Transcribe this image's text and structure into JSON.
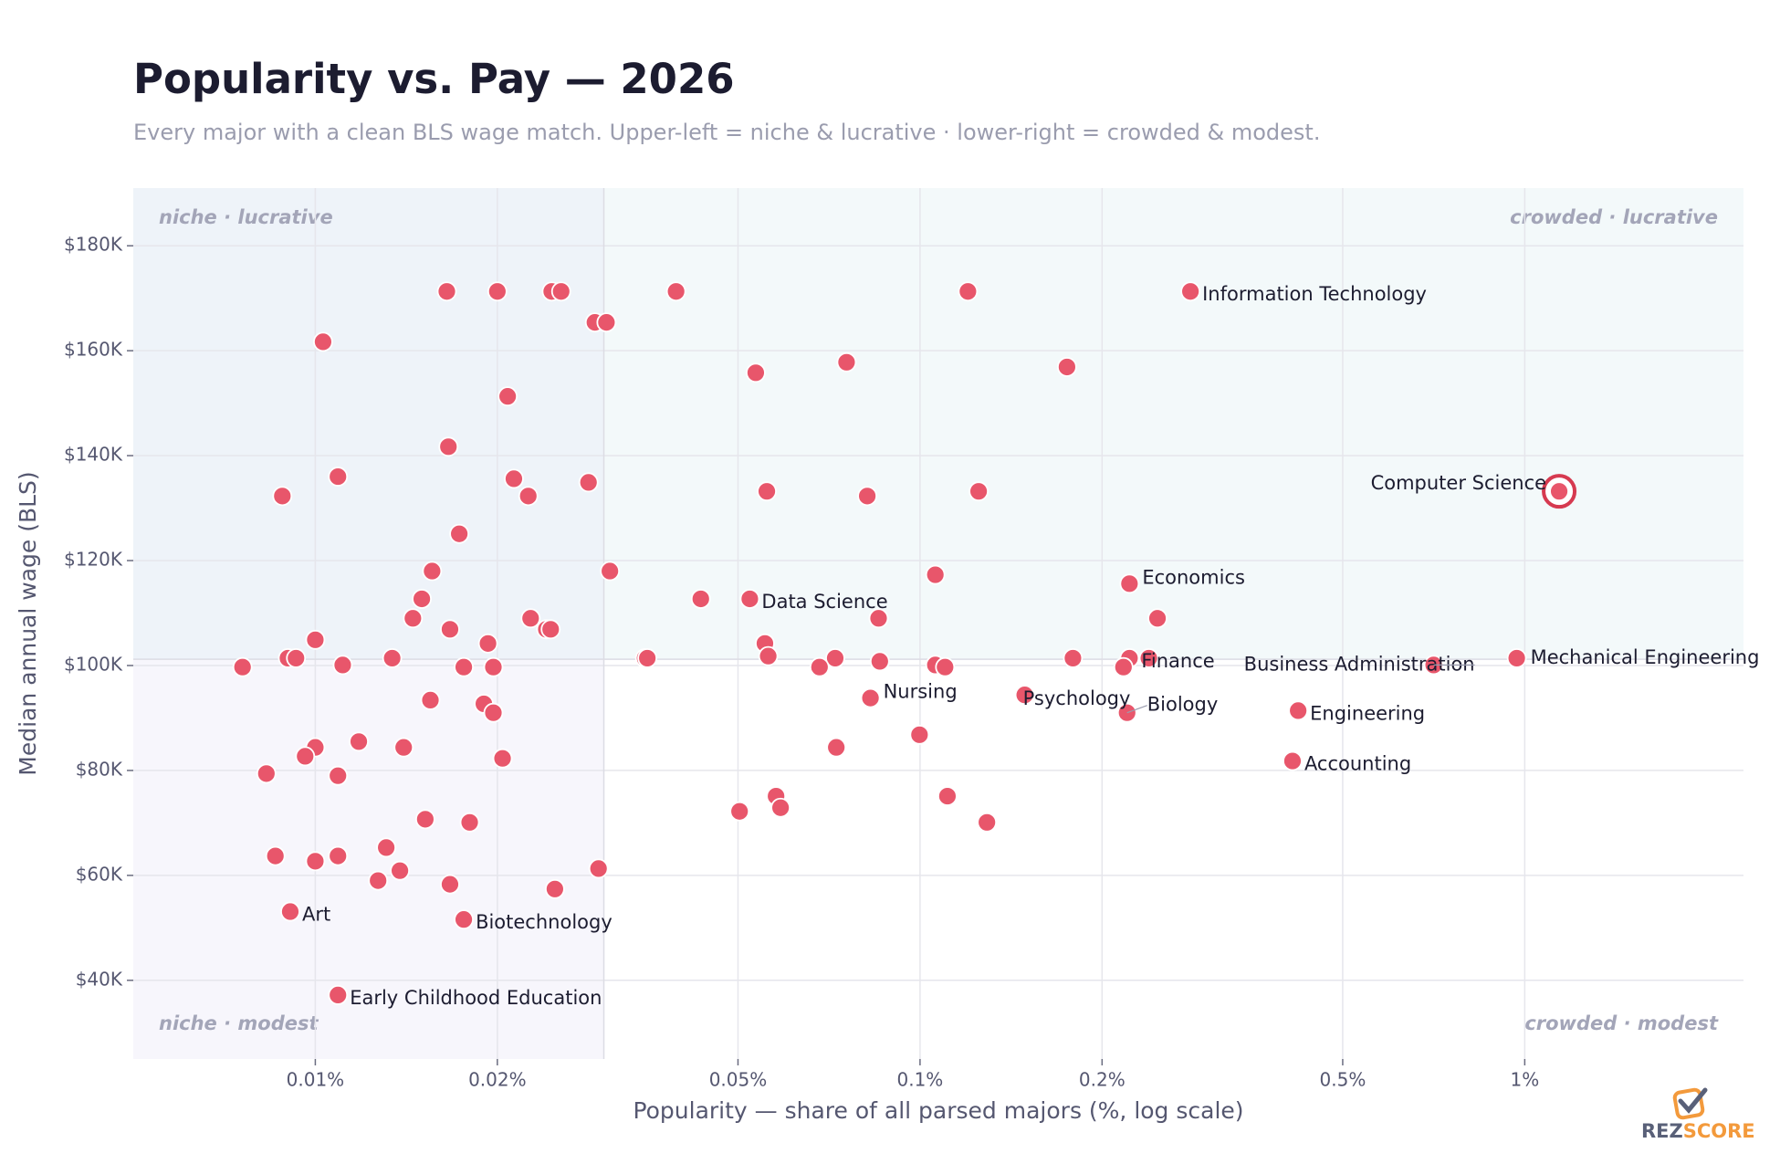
{
  "chart_data": {
    "type": "scatter",
    "title": "Popularity vs. Pay — 2026",
    "subtitle": "Every major with a clean BLS wage match.  Upper-left = niche & lucrative · lower-right = crowded & modest.",
    "x_label": "Popularity — share of all parsed majors (%, log scale)",
    "y_label": "Median annual wage  (BLS)",
    "x_scale": "log",
    "grid": true,
    "color": "#e8566b",
    "highlight": "Computer Science",
    "highlight_color": "#d63a50",
    "quadrant_split": {
      "x": 0.03,
      "y": 101200
    },
    "quadrant_colors": {
      "upper_left": "#eef3f9",
      "upper_right": "#f3f9fa",
      "lower_left": "#f7f6fc",
      "lower_right": "#ffffff"
    },
    "quadrant_labels": {
      "upper_left": "niche · lucrative",
      "upper_right": "crowded · lucrative",
      "lower_left": "niche · modest",
      "lower_right": "crowded · modest"
    },
    "xlim": [
      0.005,
      2.3
    ],
    "ylim": [
      25000,
      191000
    ],
    "xticks": [
      {
        "value": 0.01,
        "label": "0.01%"
      },
      {
        "value": 0.02,
        "label": "0.02%"
      },
      {
        "value": 0.05,
        "label": "0.05%"
      },
      {
        "value": 0.1,
        "label": "0.1%"
      },
      {
        "value": 0.2,
        "label": "0.2%"
      },
      {
        "value": 0.5,
        "label": "0.5%"
      },
      {
        "value": 1,
        "label": "1%"
      }
    ],
    "yticks": [
      {
        "value": 40000,
        "label": "$40K"
      },
      {
        "value": 60000,
        "label": "$60K"
      },
      {
        "value": 80000,
        "label": "$80K"
      },
      {
        "value": 100000,
        "label": "$100K"
      },
      {
        "value": 120000,
        "label": "$120K"
      },
      {
        "value": 140000,
        "label": "$140K"
      },
      {
        "value": 160000,
        "label": "$160K"
      },
      {
        "value": 180000,
        "label": "$180K"
      }
    ],
    "x": [
      0.0165,
      0.02,
      0.0246,
      0.0255,
      0.0395,
      0.12,
      0.28,
      0.029,
      0.0303,
      0.0103,
      0.0535,
      0.0756,
      0.175,
      0.0208,
      0.0166,
      0.0109,
      0.0213,
      0.0283,
      0.00882,
      0.0225,
      0.0818,
      0.0558,
      0.125,
      1.14,
      0.0173,
      0.0156,
      0.0307,
      0.106,
      0.222,
      0.015,
      0.0434,
      0.0523,
      0.0145,
      0.0227,
      0.0854,
      0.247,
      0.0167,
      0.0241,
      0.0245,
      0.01,
      0.0193,
      0.0554,
      0.00901,
      0.00929,
      0.0134,
      0.0351,
      0.0354,
      0.0724,
      0.179,
      0.222,
      0.239,
      0.97,
      0.0561,
      0.0858,
      0.0111,
      0.106,
      0.707,
      0.00758,
      0.0176,
      0.0197,
      0.0682,
      0.11,
      0.217,
      0.149,
      0.0828,
      0.0155,
      0.019,
      0.0197,
      0.22,
      0.422,
      0.0998,
      0.0118,
      0.01,
      0.014,
      0.0727,
      0.00962,
      0.0204,
      0.413,
      0.0083,
      0.0109,
      0.0578,
      0.111,
      0.0588,
      0.0503,
      0.0152,
      0.018,
      0.129,
      0.0131,
      0.00859,
      0.0109,
      0.01,
      0.0294,
      0.0138,
      0.0127,
      0.0167,
      0.0249,
      0.00909,
      0.0176,
      0.0109
    ],
    "y": [
      171300,
      171300,
      171300,
      171300,
      171300,
      171300,
      171300,
      165400,
      165400,
      161700,
      155800,
      157800,
      156900,
      151300,
      141700,
      136000,
      135600,
      134900,
      132300,
      132300,
      132300,
      133200,
      133200,
      133200,
      125100,
      118000,
      118000,
      117300,
      115600,
      112700,
      112700,
      112700,
      109000,
      109000,
      109000,
      109000,
      106900,
      106900,
      106900,
      104900,
      104200,
      104200,
      101400,
      101400,
      101400,
      101400,
      101400,
      101400,
      101400,
      101400,
      101400,
      101400,
      101800,
      100800,
      100100,
      100100,
      100100,
      99700,
      99700,
      99700,
      99700,
      99700,
      99700,
      94400,
      93800,
      93400,
      92700,
      91000,
      91000,
      91400,
      86800,
      85500,
      84400,
      84400,
      84400,
      82700,
      82300,
      81800,
      79400,
      79000,
      75100,
      75100,
      72900,
      72200,
      70700,
      70100,
      70100,
      65300,
      63700,
      63700,
      62700,
      61300,
      60900,
      59000,
      58300,
      57400,
      53100,
      51600,
      37200
    ],
    "labels": [
      null,
      null,
      null,
      null,
      null,
      null,
      "Information Technology",
      null,
      null,
      null,
      null,
      null,
      null,
      null,
      null,
      null,
      null,
      null,
      null,
      null,
      null,
      null,
      null,
      "Computer Science",
      null,
      null,
      null,
      null,
      "Economics",
      null,
      null,
      "Data Science",
      null,
      null,
      null,
      null,
      null,
      null,
      null,
      null,
      null,
      null,
      null,
      null,
      null,
      null,
      null,
      null,
      null,
      "Finance",
      null,
      "Mechanical Engineering",
      null,
      null,
      null,
      null,
      "Business Administration",
      null,
      null,
      null,
      null,
      null,
      null,
      "Psychology",
      "Nursing",
      null,
      null,
      null,
      "Biology",
      "Engineering",
      null,
      null,
      null,
      null,
      null,
      null,
      null,
      "Accounting",
      null,
      null,
      null,
      null,
      null,
      null,
      null,
      null,
      null,
      null,
      null,
      null,
      null,
      null,
      null,
      null,
      null,
      null,
      "Art",
      "Biotechnology",
      "Early Childhood Education"
    ],
    "logo": [
      "REZ",
      "SCORE"
    ]
  }
}
